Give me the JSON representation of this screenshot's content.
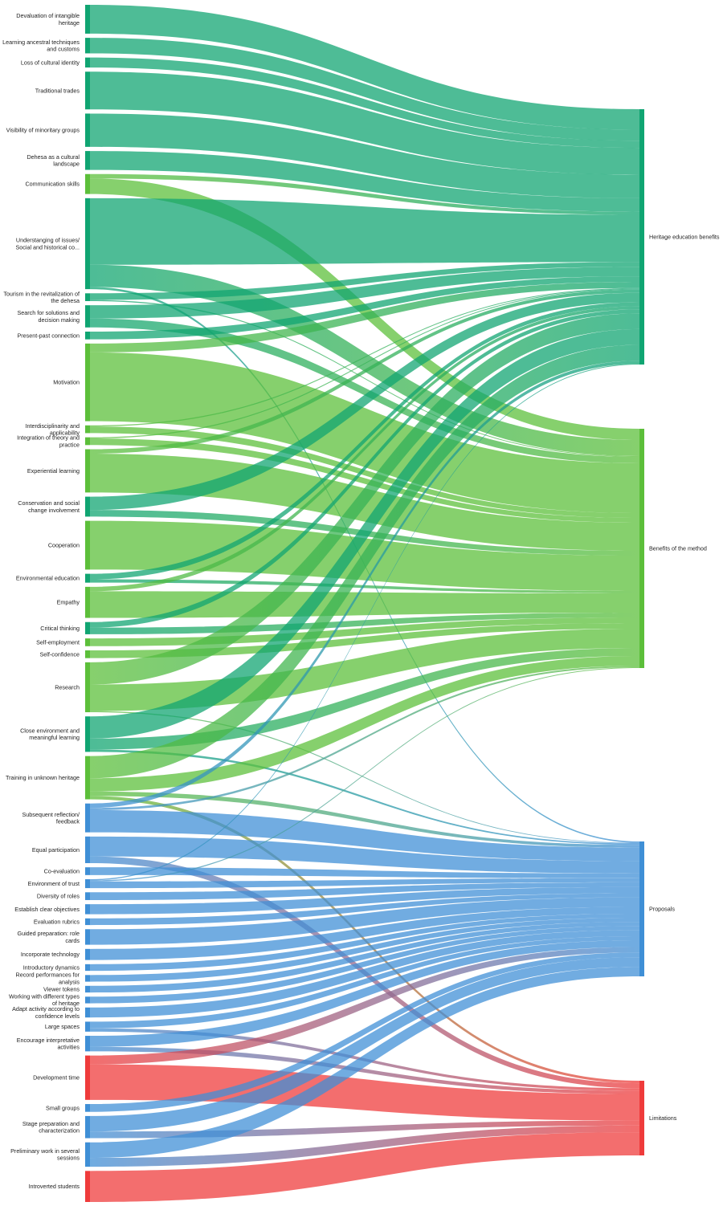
{
  "chart_data": {
    "type": "sankey",
    "colors": {
      "Heritage education benefits": "#10a572",
      "Benefits of the method": "#5cbf3a",
      "Proposals": "#3f8fd6",
      "Limitations": "#ef3b3b"
    },
    "targets": [
      {
        "name": "Heritage education benefits",
        "color": "#10a572"
      },
      {
        "name": "Benefits of the method",
        "color": "#5cbf3a"
      },
      {
        "name": "Proposals",
        "color": "#3f8fd6"
      },
      {
        "name": "Limitations",
        "color": "#ef3b3b"
      }
    ],
    "sources": [
      {
        "name": "Devaluation of intangible heritage",
        "color": "#10a572",
        "flows": {
          "Heritage education benefits": 26
        }
      },
      {
        "name": "Learning ancestral techniques and customs",
        "color": "#10a572",
        "flows": {
          "Heritage education benefits": 14
        }
      },
      {
        "name": "Loss of cultural identity",
        "color": "#10a572",
        "flows": {
          "Heritage education benefits": 9
        }
      },
      {
        "name": "Traditional trades",
        "color": "#10a572",
        "flows": {
          "Heritage education benefits": 34
        }
      },
      {
        "name": "Visibility of minoritary groups",
        "color": "#10a572",
        "flows": {
          "Heritage education benefits": 30
        }
      },
      {
        "name": "Dehesa as a cultural landscape",
        "color": "#10a572",
        "flows": {
          "Heritage education benefits": 17
        }
      },
      {
        "name": "Communication skills",
        "color": "#5cbf3a",
        "flows": {
          "Benefits of the method": 14,
          "Heritage education benefits": 4
        }
      },
      {
        "name": "Understanging of issues/ Social and historical co...",
        "color": "#10a572",
        "flows": {
          "Heritage education benefits": 60,
          "Benefits of the method": 20,
          "Proposals": 2
        }
      },
      {
        "name": "Tourism in the revitalization of the dehesa",
        "color": "#10a572",
        "flows": {
          "Heritage education benefits": 6,
          "Benefits of the method": 1
        }
      },
      {
        "name": "Search for solutions and decision making",
        "color": "#10a572",
        "flows": {
          "Heritage education benefits": 12,
          "Benefits of the method": 8
        }
      },
      {
        "name": "Present-past connection",
        "color": "#10a572",
        "flows": {
          "Heritage education benefits": 7
        }
      },
      {
        "name": "Motivation",
        "color": "#5cbf3a",
        "flows": {
          "Heritage education benefits": 8,
          "Benefits of the method": 62
        }
      },
      {
        "name": "Interdisciplinarity and applicability",
        "color": "#5cbf3a",
        "flows": {
          "Heritage education benefits": 1,
          "Benefits of the method": 6
        }
      },
      {
        "name": "Integration of theory and practice",
        "color": "#5cbf3a",
        "flows": {
          "Heritage education benefits": 1,
          "Benefits of the method": 6
        }
      },
      {
        "name": "Experiential learning",
        "color": "#5cbf3a",
        "flows": {
          "Heritage education benefits": 4,
          "Benefits of the method": 35
        }
      },
      {
        "name": "Conservation and social change involvement",
        "color": "#10a572",
        "flows": {
          "Heritage education benefits": 12,
          "Benefits of the method": 6
        }
      },
      {
        "name": "Cooperation",
        "color": "#5cbf3a",
        "flows": {
          "Benefits of the method": 44
        }
      },
      {
        "name": "Environmental education",
        "color": "#10a572",
        "flows": {
          "Heritage education benefits": 5,
          "Benefits of the method": 3
        }
      },
      {
        "name": "Empathy",
        "color": "#5cbf3a",
        "flows": {
          "Heritage education benefits": 4,
          "Benefits of the method": 24
        }
      },
      {
        "name": "Critical thinking",
        "color": "#10a572",
        "flows": {
          "Heritage education benefits": 5,
          "Benefits of the method": 6
        }
      },
      {
        "name": "Self-employment",
        "color": "#5cbf3a",
        "flows": {
          "Benefits of the method": 7
        }
      },
      {
        "name": "Self-confidence",
        "color": "#5cbf3a",
        "flows": {
          "Benefits of the method": 7
        }
      },
      {
        "name": "Research",
        "color": "#5cbf3a",
        "flows": {
          "Heritage education benefits": 20,
          "Benefits of the method": 24,
          "Proposals": 1
        }
      },
      {
        "name": "Close environment and meaningful learning",
        "color": "#10a572",
        "flows": {
          "Heritage education benefits": 20,
          "Benefits of the method": 10,
          "Proposals": 2
        }
      },
      {
        "name": "Training in unknown heritage",
        "color": "#5cbf3a",
        "flows": {
          "Heritage education benefits": 20,
          "Benefits of the method": 12,
          "Proposals": 4,
          "Limitations": 3
        }
      },
      {
        "name": "Subsequent reflection/ feedback",
        "color": "#3f8fd6",
        "flows": {
          "Heritage education benefits": 4,
          "Benefits of the method": 2,
          "Proposals": 20
        }
      },
      {
        "name": "Equal participation",
        "color": "#3f8fd6",
        "flows": {
          "Proposals": 18,
          "Limitations": 6
        }
      },
      {
        "name": "Co-evaluation",
        "color": "#3f8fd6",
        "flows": {
          "Proposals": 7
        }
      },
      {
        "name": "Environment of trust",
        "color": "#3f8fd6",
        "flows": {
          "Heritage education benefits": 1,
          "Benefits of the method": 1,
          "Proposals": 6
        }
      },
      {
        "name": "Diversity of roles",
        "color": "#3f8fd6",
        "flows": {
          "Proposals": 7
        }
      },
      {
        "name": "Establish clear objectives",
        "color": "#3f8fd6",
        "flows": {
          "Proposals": 9
        }
      },
      {
        "name": "Evaluation rubrics",
        "color": "#3f8fd6",
        "flows": {
          "Proposals": 6
        }
      },
      {
        "name": "Guided preparation: role cards",
        "color": "#3f8fd6",
        "flows": {
          "Proposals": 14
        }
      },
      {
        "name": "Incorporate technology",
        "color": "#3f8fd6",
        "flows": {
          "Proposals": 10
        }
      },
      {
        "name": "Introductory dynamics",
        "color": "#3f8fd6",
        "flows": {
          "Proposals": 6
        }
      },
      {
        "name": "Record performances for analysis",
        "color": "#3f8fd6",
        "flows": {
          "Proposals": 6
        }
      },
      {
        "name": "Viewer tokens",
        "color": "#3f8fd6",
        "flows": {
          "Proposals": 6
        }
      },
      {
        "name": "Working with different types of heritage",
        "color": "#3f8fd6",
        "flows": {
          "Proposals": 6
        }
      },
      {
        "name": "Adapt activity according to confidence levels",
        "color": "#3f8fd6",
        "flows": {
          "Proposals": 9
        }
      },
      {
        "name": "Large spaces",
        "color": "#3f8fd6",
        "flows": {
          "Proposals": 6,
          "Limitations": 3
        }
      },
      {
        "name": "Encourage interpretative activities",
        "color": "#3f8fd6",
        "flows": {
          "Proposals": 10,
          "Limitations": 4
        }
      },
      {
        "name": "Development time",
        "color": "#ef3b3b",
        "flows": {
          "Proposals": 8,
          "Limitations": 32
        }
      },
      {
        "name": "Small groups",
        "color": "#3f8fd6",
        "flows": {
          "Proposals": 7
        }
      },
      {
        "name": "Stage preparation and characterization",
        "color": "#3f8fd6",
        "flows": {
          "Proposals": 14,
          "Limitations": 6
        }
      },
      {
        "name": "Preliminary work in several sessions",
        "color": "#3f8fd6",
        "flows": {
          "Proposals": 14,
          "Limitations": 8
        }
      },
      {
        "name": "Introverted students",
        "color": "#ef3b3b",
        "flows": {
          "Limitations": 28
        }
      }
    ]
  }
}
